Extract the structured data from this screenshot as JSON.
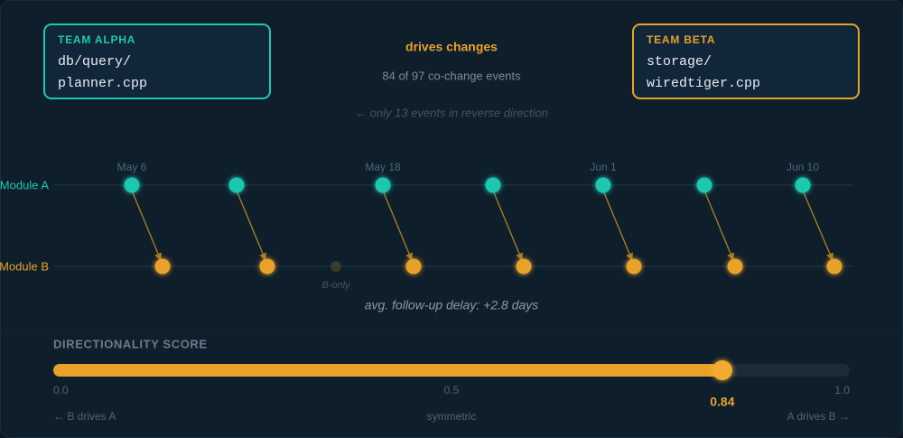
{
  "team_a": {
    "label": "TEAM ALPHA",
    "file_lines": [
      "db/query/",
      "planner.cpp"
    ]
  },
  "relation": {
    "title": "drives changes",
    "subtitle": "84 of 97 co-change events",
    "reverse_note": "← only 13 events in reverse direction"
  },
  "team_b": {
    "label": "TEAM BETA",
    "file_lines": [
      "storage/",
      "wiredtiger.cpp"
    ]
  },
  "timeline": {
    "rows": [
      "Module A",
      "Module B"
    ],
    "date_labels": [
      "May 6",
      "May 18",
      "Jun 1",
      "Jun 10"
    ],
    "b_only_label": "B-only",
    "delay_note": "avg. follow-up delay: +2.8 days"
  },
  "score": {
    "title": "DIRECTIONALITY SCORE",
    "value": 0.84,
    "lim": [
      0,
      1
    ],
    "ticks": [
      {
        "value": 0,
        "label": "0.0"
      },
      0.5,
      {
        "value": 1,
        "label": "1.0"
      }
    ],
    "captions": [
      "← B drives A",
      "symmetric",
      "A drives B →"
    ]
  }
}
